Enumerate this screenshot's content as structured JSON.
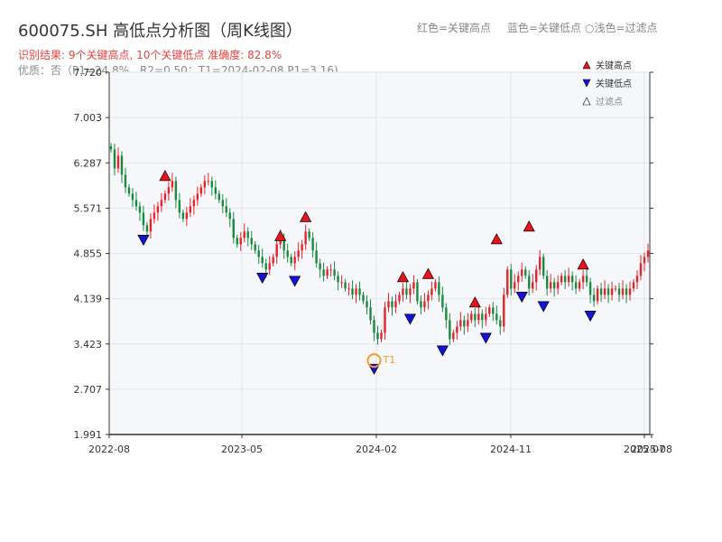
{
  "header": {
    "title": "600075.SH 高低点分析图（周K线图）",
    "legend_red": "红色=关键高点",
    "legend_blue": "蓝色=关键低点",
    "legend_light": "○浅色=过滤点",
    "subtitle1": "识别结果: 9个关键高点, 10个关键低点   准确度: 82.8%",
    "subtitle2": "优质：否（P1=24.8%，R2=0.50；T1=2024-02-08 P1=3.16)"
  },
  "colors": {
    "up": "#e3242b",
    "down": "#1a8a3e",
    "high_marker": "#e8141c",
    "low_marker": "#1414d8",
    "t1": "#f59a23",
    "plot_bg": "#f5f7fa",
    "grid": "#e2e6ec"
  },
  "chart_data": {
    "type": "candlestick",
    "y_ticks": [
      "1.991",
      "2.707",
      "3.423",
      "4.139",
      "4.855",
      "5.571",
      "6.287",
      "7.003",
      "7.720"
    ],
    "ylim": [
      1.991,
      7.72
    ],
    "x_ticks": [
      "2022-08",
      "2023-05",
      "2024-02",
      "2024-11",
      "2025-07",
      "2025-08"
    ],
    "legend": [
      "关键高点",
      "关键低点",
      "过滤点"
    ],
    "t1_label": "T1",
    "t1_value": 3.16,
    "closes": [
      6.5,
      6.2,
      6.4,
      6.1,
      5.9,
      5.8,
      5.7,
      5.6,
      5.5,
      5.3,
      5.2,
      5.4,
      5.5,
      5.6,
      5.7,
      5.8,
      5.9,
      6.0,
      5.7,
      5.5,
      5.4,
      5.5,
      5.6,
      5.7,
      5.8,
      5.9,
      6.0,
      6.0,
      5.9,
      5.8,
      5.7,
      5.6,
      5.5,
      5.4,
      5.1,
      5.0,
      5.1,
      5.2,
      5.1,
      5.0,
      4.9,
      4.8,
      4.7,
      4.6,
      4.7,
      4.8,
      5.0,
      5.1,
      4.9,
      4.8,
      4.7,
      4.8,
      4.9,
      5.0,
      5.2,
      5.1,
      4.9,
      4.7,
      4.6,
      4.5,
      4.6,
      4.6,
      4.5,
      4.4,
      4.4,
      4.3,
      4.3,
      4.2,
      4.3,
      4.2,
      4.1,
      4.0,
      3.8,
      3.6,
      3.5,
      3.6,
      4.0,
      4.1,
      4.0,
      4.1,
      4.2,
      4.3,
      4.2,
      4.3,
      4.4,
      4.1,
      4.0,
      4.1,
      4.2,
      4.3,
      4.4,
      4.2,
      4.0,
      3.8,
      3.5,
      3.6,
      3.7,
      3.8,
      3.7,
      3.8,
      3.9,
      3.8,
      3.9,
      3.8,
      3.9,
      4.0,
      3.9,
      3.8,
      3.7,
      4.2,
      4.6,
      4.3,
      4.4,
      4.5,
      4.6,
      4.5,
      4.3,
      4.4,
      4.6,
      4.8,
      4.5,
      4.3,
      4.4,
      4.3,
      4.4,
      4.5,
      4.4,
      4.5,
      4.4,
      4.3,
      4.4,
      4.5,
      4.4,
      4.2,
      4.1,
      4.3,
      4.2,
      4.3,
      4.2,
      4.3,
      4.3,
      4.2,
      4.3,
      4.2,
      4.3,
      4.4,
      4.5,
      4.7,
      4.8,
      4.9
    ],
    "key_highs": [
      {
        "i": 15,
        "v": 5.95
      },
      {
        "i": 47,
        "v": 5.0
      },
      {
        "i": 54,
        "v": 5.3
      },
      {
        "i": 81,
        "v": 4.35
      },
      {
        "i": 88,
        "v": 4.4
      },
      {
        "i": 101,
        "v": 3.95
      },
      {
        "i": 107,
        "v": 4.95
      },
      {
        "i": 116,
        "v": 5.15
      },
      {
        "i": 131,
        "v": 4.55
      }
    ],
    "key_lows": [
      {
        "i": 9,
        "v": 5.2
      },
      {
        "i": 42,
        "v": 4.6
      },
      {
        "i": 51,
        "v": 4.55
      },
      {
        "i": 73,
        "v": 3.16
      },
      {
        "i": 83,
        "v": 3.95
      },
      {
        "i": 92,
        "v": 3.45
      },
      {
        "i": 104,
        "v": 3.65
      },
      {
        "i": 114,
        "v": 4.3
      },
      {
        "i": 120,
        "v": 4.15
      },
      {
        "i": 133,
        "v": 4.0
      }
    ],
    "t1_index": 73
  }
}
